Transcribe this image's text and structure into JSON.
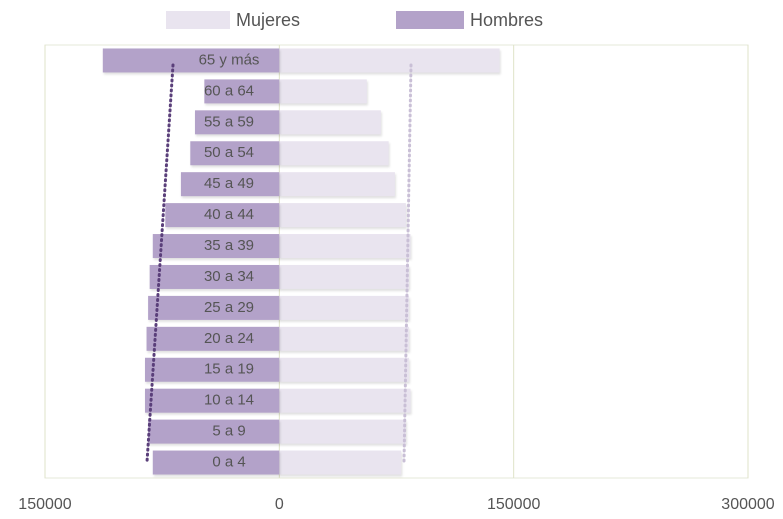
{
  "chart_data": {
    "type": "pyramid",
    "categories": [
      "65 y más",
      "60 a 64",
      "55 a 59",
      "50 a 54",
      "45 a 49",
      "40 a 44",
      "35 a 39",
      "30 a 34",
      "25 a 29",
      "20 a 24",
      "15 a 19",
      "10 a 14",
      "5 a 9",
      "0 a 4"
    ],
    "series": [
      {
        "name": "Mujeres",
        "color": "#e9e4ef",
        "values": [
          141000,
          56000,
          65000,
          70000,
          74000,
          81000,
          84000,
          83000,
          83000,
          83000,
          83000,
          84000,
          81000,
          78000
        ]
      },
      {
        "name": "Hombres",
        "color": "#b3a2c9",
        "values": [
          -113000,
          -48000,
          -54000,
          -57000,
          -63000,
          -73000,
          -81000,
          -83000,
          -84000,
          -85000,
          -86000,
          -86000,
          -84000,
          -81000
        ]
      }
    ],
    "xlim": [
      -150000,
      300000
    ],
    "xticks": [
      {
        "value": -150000,
        "label": "150000"
      },
      0,
      150000,
      300000
    ],
    "grid": true,
    "legend": "top"
  }
}
